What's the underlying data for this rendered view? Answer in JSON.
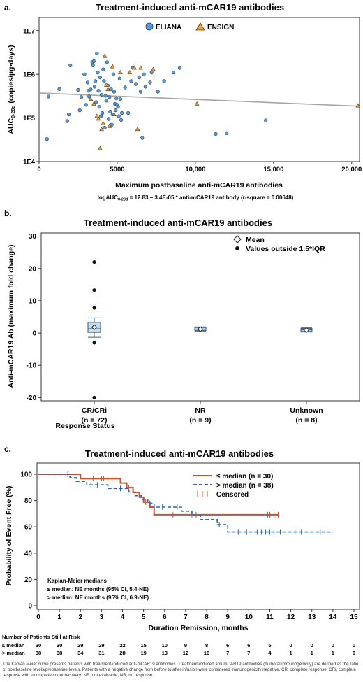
{
  "panels": {
    "a": {
      "letter": "a.",
      "chart_data": {
        "type": "scatter",
        "title": "Treatment-induced anti-mCAR19 antibodies",
        "xlabel": "Maximum postbaseline anti-mCAR19 antibodies",
        "ylabel_main": "AUC",
        "ylabel_sub": "0-28d",
        "ylabel_rest": " (copies/µg•days)",
        "x_ticks": [
          "0",
          "5000",
          "10,000",
          "15,000",
          "20,000"
        ],
        "x_tick_values": [
          0,
          5000,
          10000,
          15000,
          20000
        ],
        "y_ticks": [
          "1E4",
          "1E5",
          "1E6",
          "1E7"
        ],
        "y_tick_values": [
          10000,
          100000,
          1000000,
          10000000
        ],
        "xlim": [
          0,
          20500
        ],
        "ylim": [
          10000,
          20000000
        ],
        "y_scale": "log",
        "legend_position": "top-center",
        "series": [
          {
            "name": "ELIANA",
            "marker": "circle",
            "color": "#5b9bd5",
            "points": [
              [
                500,
                33000
              ],
              [
                600,
                310000
              ],
              [
                1300,
                460000
              ],
              [
                1800,
                85000
              ],
              [
                1900,
                120000
              ],
              [
                2000,
                1600000
              ],
              [
                2500,
                440000
              ],
              [
                2600,
                150000
              ],
              [
                2700,
                300000
              ],
              [
                2900,
                1000000
              ],
              [
                3000,
                200000
              ],
              [
                3100,
                650000
              ],
              [
                3150,
                420000
              ],
              [
                3200,
                310000
              ],
              [
                3300,
                450000
              ],
              [
                3400,
                1900000
              ],
              [
                3450,
                1600000
              ],
              [
                3500,
                2000000
              ],
              [
                3550,
                520000
              ],
              [
                3600,
                700000
              ],
              [
                3650,
                230000
              ],
              [
                3700,
                3000000
              ],
              [
                3750,
                1100000
              ],
              [
                3800,
                420000
              ],
              [
                3850,
                180000
              ],
              [
                3900,
                850000
              ],
              [
                3950,
                110000
              ],
              [
                4000,
                340000
              ],
              [
                4050,
                130000
              ],
              [
                4100,
                1300000
              ],
              [
                4150,
                700000
              ],
              [
                4200,
                60000
              ],
              [
                4250,
                320000
              ],
              [
                4300,
                250000
              ],
              [
                4350,
                1900000
              ],
              [
                4400,
                550000
              ],
              [
                4450,
                95000
              ],
              [
                4500,
                300000
              ],
              [
                4550,
                140000
              ],
              [
                4600,
                460000
              ],
              [
                4650,
                70000
              ],
              [
                4700,
                120000
              ],
              [
                4750,
                1000000
              ],
              [
                4800,
                400000
              ],
              [
                4850,
                210000
              ],
              [
                4900,
                150000
              ],
              [
                4950,
                280000
              ],
              [
                5000,
                200000
              ],
              [
                5050,
                180000
              ],
              [
                5100,
                110000
              ],
              [
                5150,
                800000
              ],
              [
                5200,
                270000
              ],
              [
                5250,
                90000
              ],
              [
                5300,
                130000
              ],
              [
                5500,
                500000
              ],
              [
                5700,
                130000
              ],
              [
                5900,
                700000
              ],
              [
                6000,
                1400000
              ],
              [
                6200,
                600000
              ],
              [
                6400,
                850000
              ],
              [
                6500,
                400000
              ],
              [
                6600,
                35000
              ],
              [
                6700,
                1000000
              ],
              [
                6800,
                520000
              ],
              [
                7100,
                650000
              ],
              [
                7200,
                1100000
              ],
              [
                7600,
                400000
              ],
              [
                8000,
                700000
              ],
              [
                8600,
                1100000
              ],
              [
                9000,
                1400000
              ],
              [
                11300,
                43000
              ],
              [
                12000,
                45000
              ],
              [
                14500,
                88000
              ]
            ]
          },
          {
            "name": "ENSIGN",
            "marker": "triangle",
            "color": "#e8a33c",
            "points": [
              [
                3300,
                270000
              ],
              [
                3500,
                210000
              ],
              [
                3700,
                110000
              ],
              [
                3800,
                95000
              ],
              [
                3900,
                20000
              ],
              [
                4000,
                55000
              ],
              [
                4100,
                75000
              ],
              [
                4200,
                2600000
              ],
              [
                4300,
                570000
              ],
              [
                4400,
                450000
              ],
              [
                4500,
                65000
              ],
              [
                4700,
                1500000
              ],
              [
                4800,
                120000
              ],
              [
                5200,
                1100000
              ],
              [
                5800,
                1100000
              ],
              [
                6100,
                1400000
              ],
              [
                6300,
                55000
              ],
              [
                6500,
                1400000
              ],
              [
                7300,
                1300000
              ],
              [
                10100,
                210000
              ],
              [
                20400,
                190000
              ]
            ]
          }
        ],
        "regression": {
          "intercept": 12.83,
          "slope": -3.4e-05,
          "color": "#a6a6a6"
        },
        "equation_text": "logAUC",
        "equation_sub": "0-28d",
        "equation_rest": " = 12.83 – 3.4E-05 * anti-mCAR19 antibody (r-square = 0.00648)"
      }
    },
    "b": {
      "letter": "b.",
      "chart_data": {
        "type": "box",
        "title": "Treatment-induced anti-mCAR19 antibodies",
        "ylabel": "Anti-mCAR19 Ab (maximum fold change)",
        "xlabel": "Response Status",
        "ylim": [
          -21,
          31
        ],
        "y_ticks": [
          "-20",
          "-10",
          "0",
          "10",
          "20",
          "30"
        ],
        "y_tick_values": [
          -20,
          -10,
          0,
          10,
          20,
          30
        ],
        "categories": [
          {
            "label": "CR/CRi",
            "n": "(n = 72)",
            "q1": 0.2,
            "median": 1.3,
            "q3": 3.3,
            "whisker_low": -1.3,
            "whisker_high": 4.7,
            "mean": 1.8,
            "outliers": [
              22,
              13.3,
              7.8,
              -3,
              -20
            ]
          },
          {
            "label": "NR",
            "n": "(n = 9)",
            "q1": 0.8,
            "median": 1.2,
            "q3": 1.7,
            "whisker_low": 0.6,
            "whisker_high": 1.9,
            "mean": 1.2,
            "outliers": []
          },
          {
            "label": "Unknown",
            "n": "(n = 8)",
            "q1": 0.5,
            "median": 1.0,
            "q3": 1.4,
            "whisker_low": 0.3,
            "whisker_high": 1.6,
            "mean": 0.9,
            "outliers": []
          }
        ],
        "legend": [
          {
            "label": "Mean",
            "marker": "diamond"
          },
          {
            "label": "Values outside 1.5*IQR",
            "marker": "dot"
          }
        ],
        "legend_position": "top-right"
      }
    },
    "c": {
      "letter": "c.",
      "chart_data": {
        "type": "line",
        "title": "Treatment-induced anti-mCAR19 antibodies",
        "xlabel": "Duration Remission, months",
        "ylabel": "Probability of Event Free (%)",
        "xlim": [
          0,
          15
        ],
        "ylim": [
          0,
          100
        ],
        "x_ticks": [
          "0",
          "1",
          "2",
          "3",
          "4",
          "5",
          "6",
          "7",
          "8",
          "9",
          "10",
          "11",
          "12",
          "13",
          "14",
          "15"
        ],
        "y_ticks": [
          "0",
          "20",
          "40",
          "60",
          "80",
          "100"
        ],
        "legend_position": "top-right",
        "series": [
          {
            "name": "≤ median (n = 30)",
            "color": "#c9502a",
            "dash": "solid",
            "steps": [
              [
                0,
                100
              ],
              [
                2.0,
                96.7
              ],
              [
                3.9,
                93.3
              ],
              [
                4.2,
                89.8
              ],
              [
                4.5,
                86.2
              ],
              [
                4.8,
                82.5
              ],
              [
                5.0,
                78.8
              ],
              [
                5.3,
                75.0
              ],
              [
                5.5,
                69.2
              ],
              [
                11.4,
                69.2
              ]
            ],
            "censored": [
              2.6,
              3.0,
              3.1,
              3.3,
              3.5,
              3.6,
              4.3,
              4.4,
              5.1,
              6.4,
              7.3,
              7.5,
              10.9,
              11.0,
              11.1,
              11.2,
              11.3,
              11.4
            ]
          },
          {
            "name": "> median (n = 38)",
            "color": "#3465a4",
            "dash": "dashed",
            "steps": [
              [
                0,
                100
              ],
              [
                1.5,
                97.3
              ],
              [
                1.8,
                94.6
              ],
              [
                2.3,
                91.9
              ],
              [
                3.3,
                89.2
              ],
              [
                4.3,
                86.5
              ],
              [
                4.6,
                83.7
              ],
              [
                4.9,
                80.8
              ],
              [
                5.2,
                77.9
              ],
              [
                5.5,
                75.0
              ],
              [
                6.8,
                71.9
              ],
              [
                7.3,
                68.7
              ],
              [
                7.7,
                65.5
              ],
              [
                8.5,
                61.7
              ],
              [
                9.0,
                56.1
              ],
              [
                14.0,
                56.1
              ]
            ],
            "censored": [
              1.4,
              2.5,
              2.8,
              3.9,
              5.3,
              5.9,
              6.6,
              8.6,
              9.5,
              9.9,
              10.4,
              10.6,
              10.8,
              11.0,
              11.2,
              11.5,
              12.2,
              12.5,
              13.4
            ]
          }
        ],
        "censored_label": "Censored",
        "km_title": "Kaplan-Meier medians",
        "km_lines": [
          "≤ median: NE months (95% CI, 5.4-NE)",
          "> median: NE months (95% CI, 6.9-NE)"
        ],
        "risk_title": "Number of Patients Still at Risk",
        "risk_rows": [
          {
            "label": "≤ median",
            "values": [
              "30",
              "30",
              "29",
              "29",
              "22",
              "15",
              "10",
              "9",
              "8",
              "6",
              "6",
              "5",
              "0",
              "0",
              "0",
              "0"
            ]
          },
          {
            "label": "> median",
            "values": [
              "38",
              "38",
              "34",
              "31",
              "28",
              "19",
              "13",
              "12",
              "10",
              "7",
              "7",
              "4",
              "1",
              "1",
              "1",
              "0"
            ]
          }
        ]
      }
    }
  },
  "footnote": "The Kaplan Meier curve presents patients with treatment-induced anti-mCAR19 antibodies. Treatment-induced anti-mCAR19 antibodies (humoral immunogenicity) are defined as the ratio of postbaseline levels/prebaseline levels. Patients with a negative change from before to after infusion were considered immunogenicity negative. CR, complete response; CRi, complete response with incomplete count recovery; NE, not evaluable; NR, no response."
}
